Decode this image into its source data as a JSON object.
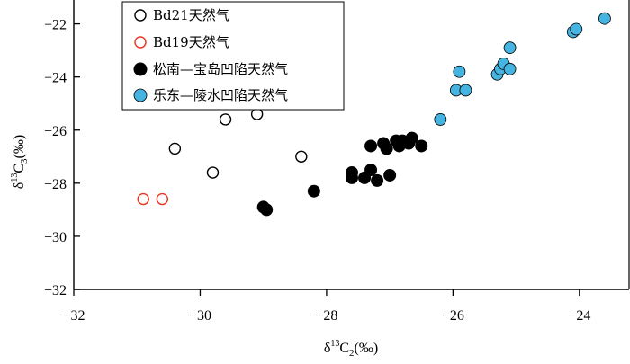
{
  "chart_data": {
    "type": "scatter",
    "xlabel": {
      "base": "δ",
      "sup": "13",
      "mid": "C",
      "sub": "2",
      "unit": "(‰)"
    },
    "ylabel": {
      "base": "δ",
      "sup": "13",
      "mid": "C",
      "sub": "3",
      "unit": "(‰)"
    },
    "xlim": [
      -32,
      -23.2
    ],
    "ylim": [
      -32,
      -21.1
    ],
    "xticks": [
      -32,
      -30,
      -28,
      -26,
      -24
    ],
    "yticks": [
      -32,
      -30,
      -28,
      -26,
      -24,
      -22
    ],
    "legend_position": "top-left",
    "series": [
      {
        "name": "Bd21天然气",
        "marker": "open-circle",
        "color": "#000000",
        "points": [
          [
            -30.4,
            -26.7
          ],
          [
            -29.8,
            -27.6
          ],
          [
            -29.6,
            -25.6
          ],
          [
            -29.1,
            -25.4
          ],
          [
            -28.4,
            -27.0
          ]
        ]
      },
      {
        "name": "Bd19天然气",
        "marker": "open-circle",
        "color": "#e8321e",
        "points": [
          [
            -30.9,
            -28.6
          ],
          [
            -30.6,
            -28.6
          ]
        ]
      },
      {
        "name": "松南—宝岛凹陷天然气",
        "marker": "filled-circle",
        "color": "#000000",
        "points": [
          [
            -29.0,
            -28.9
          ],
          [
            -28.95,
            -29.0
          ],
          [
            -28.2,
            -28.3
          ],
          [
            -27.6,
            -27.6
          ],
          [
            -27.6,
            -27.8
          ],
          [
            -27.4,
            -27.8
          ],
          [
            -27.3,
            -26.6
          ],
          [
            -27.3,
            -27.5
          ],
          [
            -27.2,
            -27.9
          ],
          [
            -27.1,
            -26.5
          ],
          [
            -27.05,
            -26.7
          ],
          [
            -27.0,
            -27.7
          ],
          [
            -26.9,
            -26.4
          ],
          [
            -26.85,
            -26.6
          ],
          [
            -26.8,
            -26.4
          ],
          [
            -26.7,
            -26.5
          ],
          [
            -26.65,
            -26.3
          ],
          [
            -26.5,
            -26.6
          ]
        ]
      },
      {
        "name": "乐东—陵水凹陷天然气",
        "marker": "filled-circle",
        "color": "#45b4e0",
        "points": [
          [
            -26.2,
            -25.6
          ],
          [
            -25.95,
            -24.5
          ],
          [
            -25.9,
            -23.8
          ],
          [
            -25.8,
            -24.5
          ],
          [
            -25.3,
            -23.9
          ],
          [
            -25.25,
            -23.7
          ],
          [
            -25.2,
            -23.5
          ],
          [
            -25.1,
            -23.7
          ],
          [
            -25.1,
            -22.9
          ],
          [
            -24.1,
            -22.3
          ],
          [
            -24.05,
            -22.2
          ],
          [
            -23.6,
            -21.8
          ]
        ]
      }
    ]
  }
}
